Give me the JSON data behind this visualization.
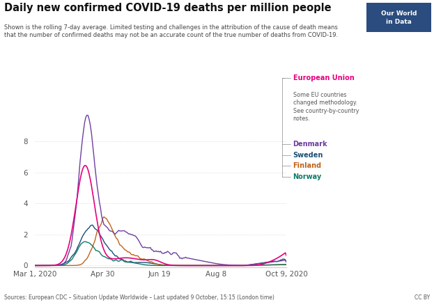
{
  "title": "Daily new confirmed COVID-19 deaths per million people",
  "subtitle": "Shown is the rolling 7-day average. Limited testing and challenges in the attribution of the cause of death means\nthat the number of confirmed deaths may not be an accurate count of the true number of deaths from COVID-19.",
  "source_text": "Sources: European CDC – Situation Update Worldwide – Last updated 9 October, 15:15 (London time)",
  "cc_text": "CC BY",
  "yticks": [
    0,
    2,
    4,
    6,
    8
  ],
  "xtick_labels": [
    "Mar 1, 2020",
    "Apr 30",
    "Jun 19",
    "Aug 8",
    "Oct 9, 2020"
  ],
  "xtick_positions": [
    0,
    60,
    110,
    160,
    222
  ],
  "colors": {
    "European Union": "#e6007e",
    "Denmark": "#6d3fa0",
    "Sweden": "#1a4f72",
    "Finland": "#c0621a",
    "Norway": "#0f7a6a"
  },
  "owid_box_color": "#2b4c7e",
  "owid_text": "Our World\nin Data",
  "background_color": "#ffffff",
  "legend_note_color": "#555555",
  "legend_note": "Some EU countries\nchanged methodology.\nSee country-by-country\nnotes.",
  "grid_color": "#d4d4d4",
  "tick_color": "#555555",
  "spine_color": "#cccccc"
}
